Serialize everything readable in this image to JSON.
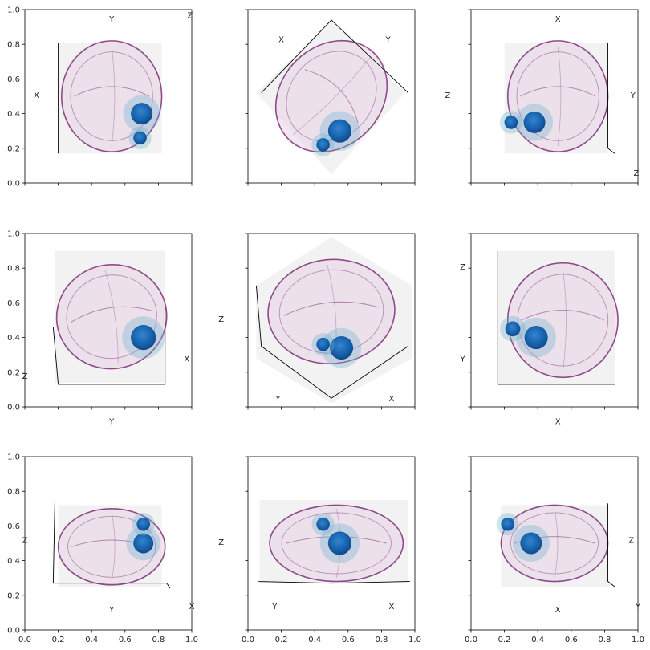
{
  "figure": {
    "rows": 3,
    "cols": 3
  },
  "colors": {
    "brain": "#8e4a8a",
    "brain_fill": "#e8d2e6",
    "tumor_light": "#6fb3cc",
    "tumor_dark": "#0a5aa6",
    "tumor_core": "#0b3f86",
    "pane": "#eeeeee",
    "frame": "#000000"
  },
  "ticks": {
    "x": [
      "0.0",
      "0.2",
      "0.4",
      "0.6",
      "0.8",
      "1.0"
    ],
    "y": [
      "0.0",
      "0.2",
      "0.4",
      "0.6",
      "0.8",
      "1.0"
    ]
  },
  "chart_data": [
    {
      "type": "3d-volume",
      "view": "top",
      "xlim": [
        0,
        1
      ],
      "ylim": [
        0,
        1
      ],
      "axis_labels": [
        "Y",
        "Z",
        "X"
      ],
      "show_x_ticks": false,
      "show_y_ticks": true
    },
    {
      "type": "3d-volume",
      "view": "top-rotated",
      "xlim": [
        0,
        1
      ],
      "ylim": [
        0,
        1
      ],
      "axis_labels": [
        "X",
        "Y"
      ],
      "show_x_ticks": false,
      "show_y_ticks": false
    },
    {
      "type": "3d-volume",
      "view": "top-flipped",
      "xlim": [
        0,
        1
      ],
      "ylim": [
        0,
        1
      ],
      "axis_labels": [
        "X",
        "Z",
        "Y",
        "Z"
      ],
      "show_x_ticks": false,
      "show_y_ticks": false
    },
    {
      "type": "3d-volume",
      "view": "oblique-left",
      "xlim": [
        0,
        1
      ],
      "ylim": [
        0,
        1
      ],
      "axis_labels": [
        "Z",
        "X",
        "Y"
      ],
      "show_x_ticks": false,
      "show_y_ticks": true
    },
    {
      "type": "3d-volume",
      "view": "isometric",
      "xlim": [
        0,
        1
      ],
      "ylim": [
        0,
        1
      ],
      "axis_labels": [
        "Z",
        "Y",
        "X"
      ],
      "show_x_ticks": false,
      "show_y_ticks": false
    },
    {
      "type": "3d-volume",
      "view": "oblique-right",
      "xlim": [
        0,
        1
      ],
      "ylim": [
        0,
        1
      ],
      "axis_labels": [
        "Z",
        "Y",
        "X"
      ],
      "show_x_ticks": false,
      "show_y_ticks": false
    },
    {
      "type": "3d-volume",
      "view": "side-left",
      "xlim": [
        0,
        1
      ],
      "ylim": [
        0,
        1
      ],
      "axis_labels": [
        "Z",
        "Y",
        "X"
      ],
      "show_x_ticks": true,
      "show_y_ticks": true
    },
    {
      "type": "3d-volume",
      "view": "side-perspective",
      "xlim": [
        0,
        1
      ],
      "ylim": [
        0,
        1
      ],
      "axis_labels": [
        "Z",
        "Y",
        "X"
      ],
      "show_x_ticks": true,
      "show_y_ticks": false
    },
    {
      "type": "3d-volume",
      "view": "front",
      "xlim": [
        0,
        1
      ],
      "ylim": [
        0,
        1
      ],
      "axis_labels": [
        "Z",
        "X",
        "Y"
      ],
      "show_x_ticks": true,
      "show_y_ticks": false
    }
  ]
}
